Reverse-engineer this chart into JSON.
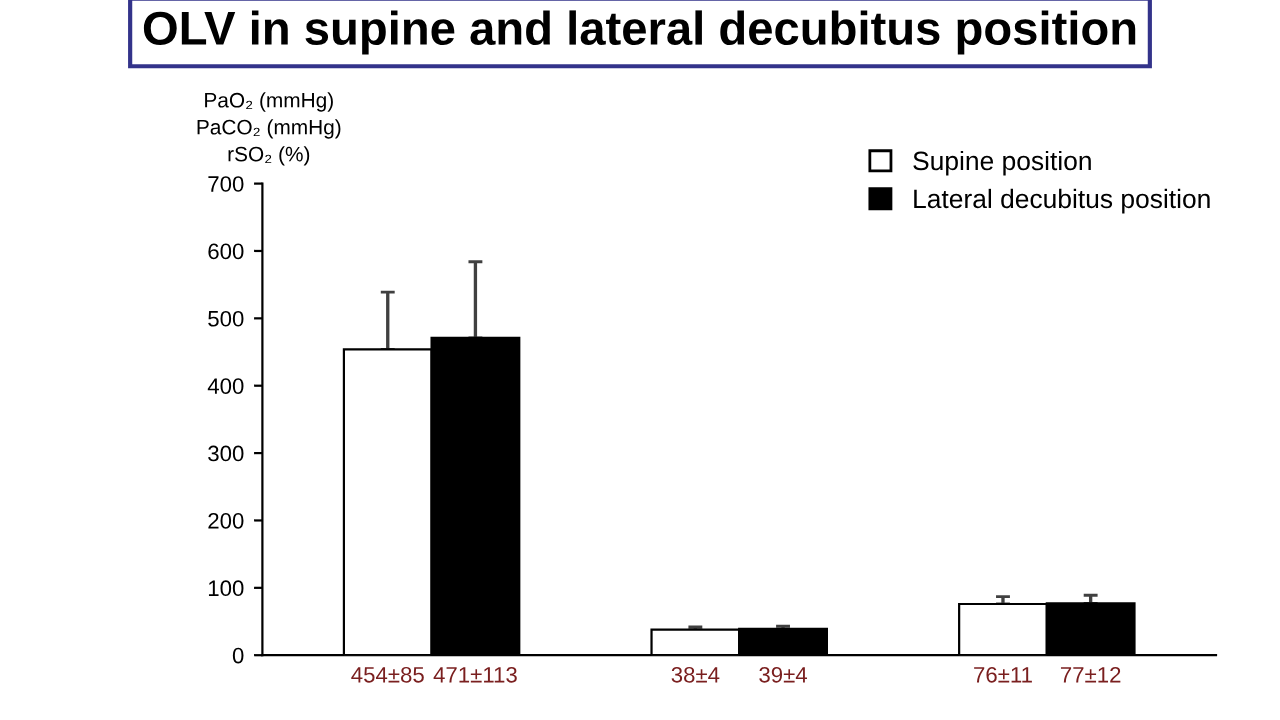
{
  "chart_data": {
    "type": "bar",
    "title": "OLV in supine and lateral decubitus position",
    "ylabel": "PaO₂ (mmHg)\nPaCO₂ (mmHg)\nrSO₂ (%)",
    "categories": [
      null,
      null,
      null
    ],
    "series": [
      {
        "name": "Supine position",
        "color": "#ffffff",
        "values": [
          454,
          38,
          76
        ],
        "errors": [
          [
            454,
            539
          ],
          [
            38,
            42
          ],
          [
            76,
            87
          ]
        ],
        "value_labels": [
          "454±85",
          "38±4",
          "76±11"
        ]
      },
      {
        "name": "Lateral decubitus position",
        "color": "#000000",
        "values": [
          471,
          39,
          77
        ],
        "errors": [
          [
            471,
            584
          ],
          [
            39,
            43
          ],
          [
            77,
            89
          ]
        ],
        "value_labels": [
          "471±113",
          "39±4",
          "77±12"
        ]
      }
    ],
    "ylim": [
      0,
      700
    ],
    "yticks": [
      0,
      100,
      200,
      300,
      400,
      500,
      600,
      700
    ],
    "grid": false,
    "legend": "top right"
  }
}
